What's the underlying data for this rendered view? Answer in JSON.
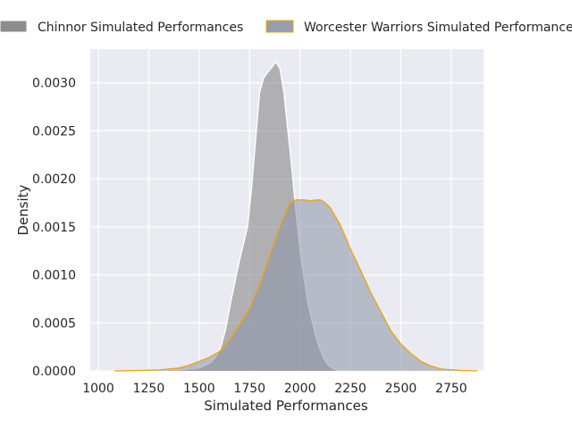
{
  "chart_data": {
    "type": "area",
    "title": "",
    "xlabel": "Simulated Performances",
    "ylabel": "Density",
    "xlim": [
      960,
      2910
    ],
    "ylim": [
      0,
      0.00335
    ],
    "x_ticks": [
      1000,
      1250,
      1500,
      1750,
      2000,
      2250,
      2500,
      2750
    ],
    "y_ticks": [
      0.0,
      0.0005,
      0.001,
      0.0015,
      0.002,
      0.0025,
      0.003
    ],
    "y_tick_labels": [
      "0.0000",
      "0.0005",
      "0.0010",
      "0.0015",
      "0.0020",
      "0.0025",
      "0.0030"
    ],
    "grid": true,
    "legend_position": "top",
    "series": [
      {
        "name": "Chinnor Simulated Performances",
        "fill": "#808080",
        "edge": "#ffffff",
        "x": [
          1200,
          1400,
          1500,
          1560,
          1600,
          1630,
          1660,
          1700,
          1740,
          1760,
          1780,
          1800,
          1820,
          1840,
          1860,
          1880,
          1900,
          1920,
          1940,
          1960,
          1980,
          2000,
          2020,
          2040,
          2060,
          2080,
          2100,
          2120,
          2140,
          2160,
          2180,
          2200,
          2240,
          2300
        ],
        "values": [
          0.0,
          1e-05,
          3e-05,
          9e-05,
          0.0002,
          0.00042,
          0.00075,
          0.00115,
          0.0015,
          0.0019,
          0.0024,
          0.0029,
          0.00305,
          0.00311,
          0.00316,
          0.00322,
          0.00315,
          0.0029,
          0.0025,
          0.0021,
          0.00165,
          0.00126,
          0.00097,
          0.0007,
          0.00052,
          0.00035,
          0.00022,
          0.00012,
          6e-05,
          3e-05,
          1e-05,
          5e-06,
          0.0,
          0.0
        ]
      },
      {
        "name": "Worcester Warriors Simulated Performances",
        "fill": "#8a93a6",
        "edge": "#f0a500",
        "x": [
          1080,
          1200,
          1300,
          1400,
          1450,
          1500,
          1550,
          1600,
          1650,
          1700,
          1750,
          1800,
          1850,
          1900,
          1950,
          1980,
          2000,
          2020,
          2050,
          2080,
          2100,
          2120,
          2150,
          2200,
          2250,
          2300,
          2350,
          2400,
          2450,
          2500,
          2550,
          2600,
          2650,
          2700,
          2800,
          2880
        ],
        "values": [
          0.0,
          5e-06,
          1e-05,
          3e-05,
          6e-05,
          0.0001,
          0.00014,
          0.0002,
          0.00032,
          0.00048,
          0.00065,
          0.0009,
          0.0012,
          0.0015,
          0.00175,
          0.00178,
          0.00178,
          0.00178,
          0.00177,
          0.00178,
          0.00178,
          0.00176,
          0.0017,
          0.00152,
          0.00127,
          0.00105,
          0.00082,
          0.00062,
          0.00042,
          0.00028,
          0.00018,
          0.0001,
          5e-05,
          2e-05,
          5e-06,
          0.0
        ]
      }
    ]
  }
}
